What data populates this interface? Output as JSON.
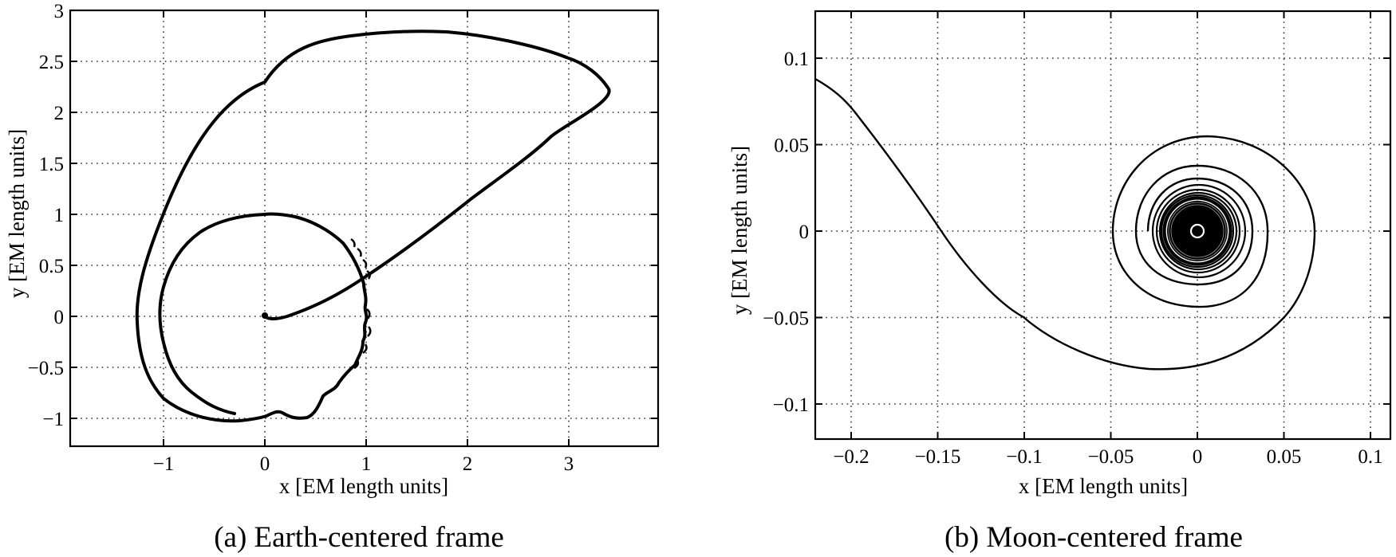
{
  "chart_data": [
    {
      "type": "line",
      "panel": "a",
      "caption": "(a) Earth-centered frame",
      "title": "",
      "xlabel": "x [EM length units]",
      "ylabel": "y [EM length units]",
      "xlim": [
        -1.92,
        3.88
      ],
      "ylim": [
        -1.28,
        3.0
      ],
      "xticks": [
        -1,
        0,
        1,
        2,
        3
      ],
      "yticks": [
        -1,
        -0.5,
        0,
        0.5,
        1,
        1.5,
        2,
        2.5,
        3
      ],
      "xtick_labels": [
        "−1",
        "0",
        "1",
        "2",
        "3"
      ],
      "ytick_labels": [
        "−1",
        "−0.5",
        "0",
        "0.5",
        "1",
        "1.5",
        "2",
        "2.5",
        "3"
      ],
      "grid": true,
      "legend": null,
      "line_color": "#000000",
      "series": [
        {
          "name": "trajectory",
          "x": [
            0.0,
            0.05,
            0.3,
            0.6,
            1.0,
            1.5,
            2.0,
            2.5,
            3.0,
            3.3,
            3.4,
            3.35,
            3.1,
            2.7,
            2.2,
            1.8,
            1.3,
            0.8,
            0.3,
            0.0,
            -0.4,
            -0.8,
            -1.05,
            -1.2,
            -1.25,
            -1.2,
            -1.05,
            -0.8,
            -0.5,
            -0.25,
            0.0,
            0.1,
            0.3,
            0.55,
            0.65,
            0.8,
            0.9,
            0.97,
            0.98,
            0.95,
            0.8,
            0.5,
            0.0,
            -0.5,
            -0.85,
            -1.0,
            -0.9,
            -0.65,
            -0.3
          ],
          "y": [
            0.0,
            -0.02,
            0.08,
            0.22,
            0.42,
            0.72,
            1.05,
            1.42,
            1.8,
            2.1,
            2.28,
            2.45,
            2.62,
            2.74,
            2.8,
            2.8,
            2.74,
            2.6,
            2.42,
            2.3,
            2.05,
            1.6,
            1.05,
            0.55,
            0.1,
            -0.35,
            -0.65,
            -0.88,
            -1.0,
            -1.02,
            -0.99,
            -0.94,
            -0.98,
            -0.8,
            -0.72,
            -0.5,
            -0.3,
            -0.05,
            0.15,
            0.4,
            0.7,
            0.92,
            1.0,
            0.85,
            0.45,
            0.0,
            -0.5,
            -0.8,
            -0.95
          ]
        }
      ]
    },
    {
      "type": "line",
      "panel": "b",
      "caption": "(b) Moon-centered frame",
      "title": "",
      "xlabel": "x [EM length units]",
      "ylabel": "y [EM length units]",
      "xlim": [
        -0.221,
        0.112
      ],
      "ylim": [
        -0.12,
        0.127
      ],
      "xticks": [
        -0.2,
        -0.15,
        -0.1,
        -0.05,
        0,
        0.05,
        0.1
      ],
      "yticks": [
        -0.1,
        -0.05,
        0,
        0.05,
        0.1
      ],
      "xtick_labels": [
        "−0.2",
        "−0.15",
        "−0.1",
        "−0.05",
        "0",
        "0.05",
        "0.1"
      ],
      "ytick_labels": [
        "−0.1",
        "−0.05",
        "0",
        "0.05",
        "0.1"
      ],
      "grid": true,
      "legend": null,
      "line_color": "#000000",
      "annotations": [
        "white circle marker at Moon center (0, 0)"
      ],
      "series": [
        {
          "name": "approach trajectory",
          "x": [
            -0.221,
            -0.2,
            -0.18,
            -0.16,
            -0.15,
            -0.13,
            -0.1,
            -0.07,
            -0.04,
            -0.015,
            0.01,
            0.035,
            0.05,
            0.062,
            0.068,
            0.066,
            0.055,
            0.035,
            0.006,
            -0.02,
            -0.04,
            -0.049,
            -0.045,
            -0.03,
            0.0,
            0.03,
            0.04
          ],
          "y": [
            0.088,
            0.07,
            0.045,
            0.015,
            0.0,
            -0.025,
            -0.05,
            -0.068,
            -0.078,
            -0.08,
            -0.078,
            -0.068,
            -0.05,
            -0.03,
            0.0,
            0.02,
            0.038,
            0.05,
            0.055,
            0.05,
            0.035,
            0.005,
            -0.025,
            -0.04,
            -0.045,
            -0.03,
            0.0
          ]
        },
        {
          "name": "spiral rings (approx radii)",
          "radii": [
            0.037,
            0.029,
            0.024,
            0.021,
            0.019,
            0.0175
          ]
        }
      ]
    }
  ],
  "panels": {
    "a": {
      "caption": "(a) Earth-centered frame",
      "xlabel": "x [EM length units]",
      "ylabel": "y [EM length units]"
    },
    "b": {
      "caption": "(b) Moon-centered frame",
      "xlabel": "x [EM length units]",
      "ylabel": "y [EM length units]"
    }
  }
}
